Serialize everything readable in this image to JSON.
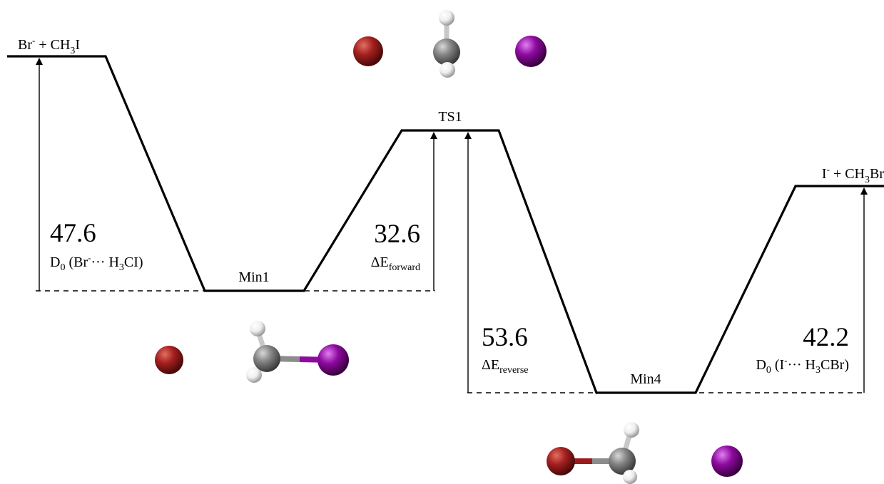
{
  "states": {
    "reactant": {
      "pre": "Br",
      "sup": "-",
      "mid": " + CH",
      "sub": "3",
      "post": "I"
    },
    "ts": "TS1",
    "min1": "Min1",
    "min4": "Min4",
    "product": {
      "pre": "I",
      "sup": "-",
      "mid": " + CH",
      "sub": "3",
      "post": "Br"
    }
  },
  "annotations": {
    "d0_reactant": {
      "value": "47.6",
      "pre": "D",
      "sub0": "0",
      "mid": " (Br",
      "sup": "-",
      "dots": "··· H",
      "sub3": "3",
      "post": "CI)"
    },
    "forward": {
      "value": "32.6",
      "pre": "ΔE",
      "sub": "forward"
    },
    "reverse": {
      "value": "53.6",
      "pre": "ΔE",
      "sub": "reverse"
    },
    "d0_product": {
      "value": "42.2",
      "pre": "D",
      "sub0": "0",
      "mid": " (I",
      "sup": "-",
      "dots": "··· H",
      "sub3": "3",
      "post": "CBr)"
    }
  },
  "colors": {
    "bromine": "#9b1c1c",
    "iodine": "#8a0a9a",
    "carbon": "#808080",
    "hydrogen": "#f0f0f0"
  }
}
